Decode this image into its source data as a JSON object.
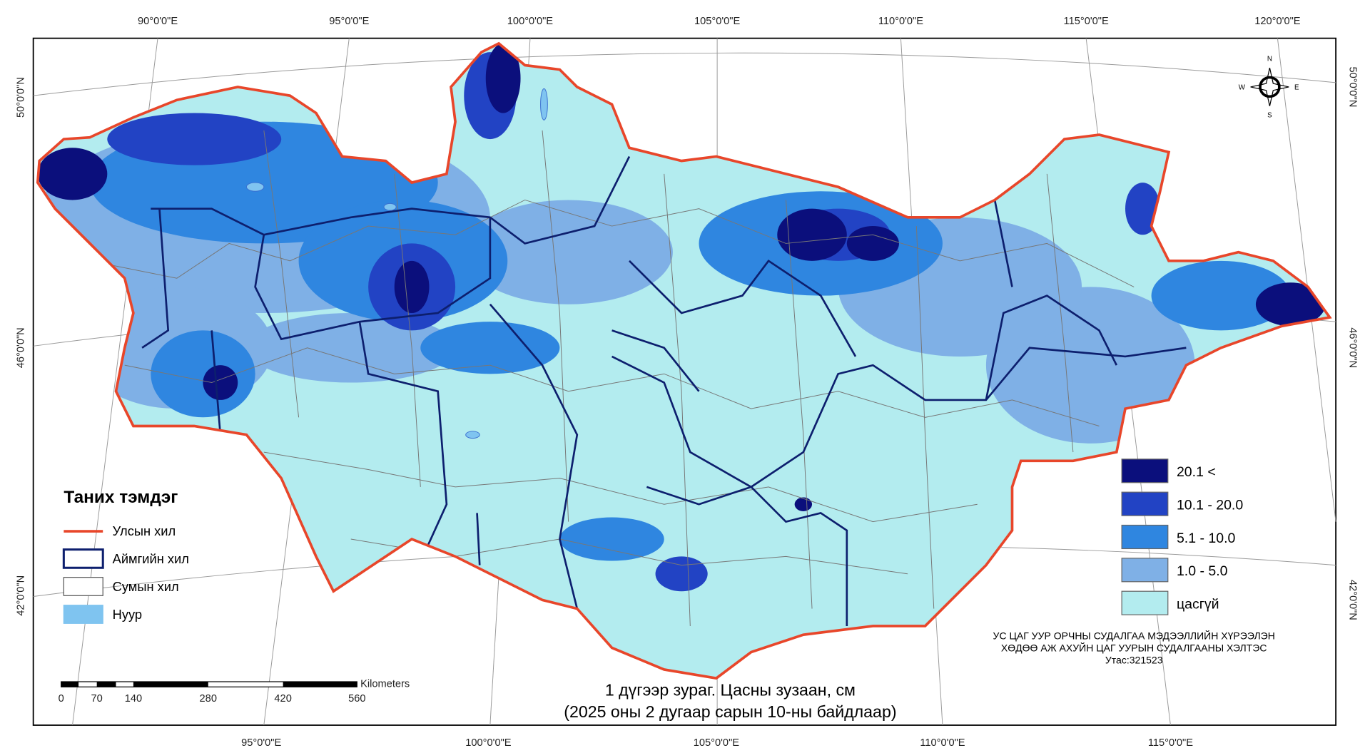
{
  "map": {
    "title": [
      "1 дүгээр зураг. Цасны зузаан, см",
      "(2025 оны 2 дугаар сарын 10-ны байдлаар)"
    ],
    "top_longitudes": [
      "90°0'0\"E",
      "95°0'0\"E",
      "100°0'0\"E",
      "105°0'0\"E",
      "110°0'0\"E",
      "115°0'0\"E",
      "120°0'0\"E"
    ],
    "bottom_longitudes": [
      "95°0'0\"E",
      "100°0'0\"E",
      "105°0'0\"E",
      "110°0'0\"E",
      "115°0'0\"E"
    ],
    "left_latitudes": [
      "50°0'0\"N",
      "46°0'0\"N",
      "42°0'0\"N"
    ],
    "right_latitudes": [
      "50°0'0\"N",
      "46°0'0\"N",
      "42°0'0\"N"
    ],
    "compass": [
      "N",
      "E",
      "S",
      "W"
    ],
    "legend": {
      "title": "Таних тэмдэг",
      "items": [
        {
          "label": "Улсын хил",
          "color": "#e8462a"
        },
        {
          "label": "Аймгийн хил",
          "color": "#0d1f6e"
        },
        {
          "label": "Сумын хил",
          "color": "#555555"
        },
        {
          "label": "Нуур",
          "color": "#7fc4f0"
        }
      ]
    },
    "snow_classes": [
      {
        "label": "20.1 <",
        "color": "#0b0f7c"
      },
      {
        "label": "10.1 - 20.0",
        "color": "#2243c4"
      },
      {
        "label": "5.1 - 10.0",
        "color": "#2f86e0"
      },
      {
        "label": "1.0 - 5.0",
        "color": "#7fb0e6"
      },
      {
        "label": "цасгүй",
        "color": "#b3ecef"
      }
    ],
    "scale_bar": {
      "unit": "Kilometers",
      "labels": [
        "0",
        "70",
        "140",
        "280",
        "420",
        "560"
      ]
    },
    "credits": [
      "УС ЦАГ УУР ОРЧНЫ СУДАЛГАА МЭДЭЭЛЛИЙН ХҮРЭЭЛЭН",
      "ХӨДӨӨ АЖ АХУЙН ЦАГ УУРЫН СУДАЛГААНЫ ХЭЛТЭС",
      "Утас:321523"
    ]
  }
}
